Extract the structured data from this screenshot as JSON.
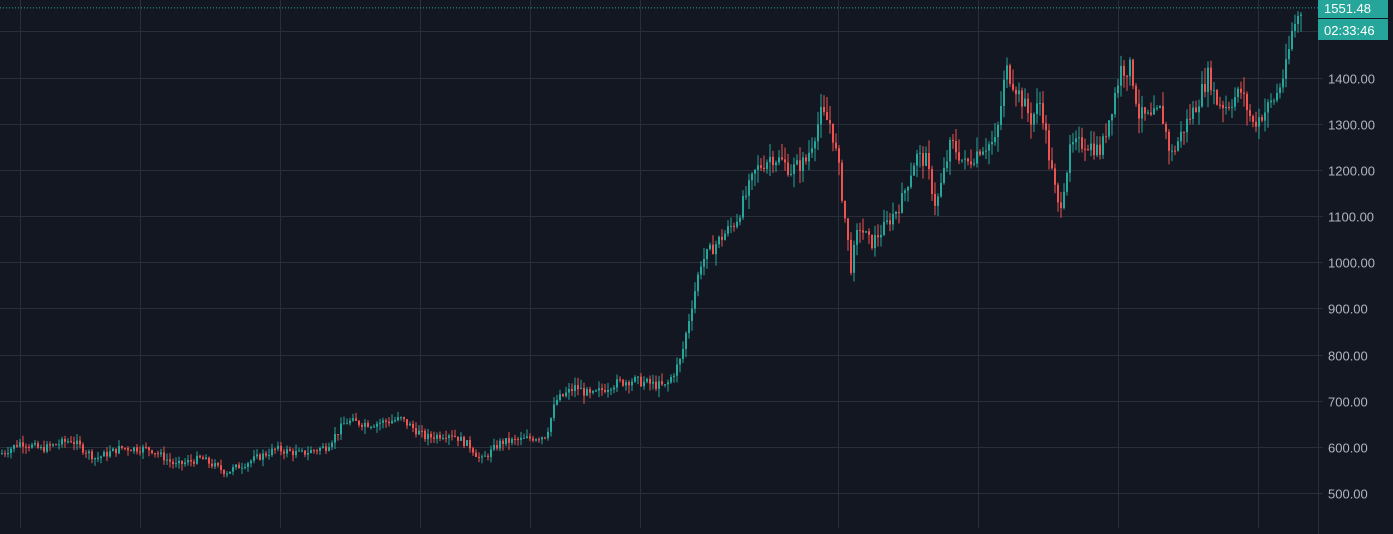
{
  "chart_data": {
    "type": "candlestick",
    "title": "",
    "xlabel": "",
    "ylabel": "",
    "ylim": [
      450,
      1565
    ],
    "grid": true,
    "y_ticks": [
      "500.00",
      "600.00",
      "700.00",
      "800.00",
      "900.00",
      "1000.00",
      "1100.00",
      "1200.00",
      "1300.00",
      "1400.00"
    ],
    "y_tick_values": [
      500,
      600,
      700,
      800,
      900,
      1000,
      1100,
      1200,
      1300,
      1400
    ],
    "last_price": "1551.48",
    "last_price_value": 1551.48,
    "countdown": "02:33:46",
    "colors": {
      "background": "#131722",
      "grid": "#2a2e39",
      "up": "#26a69a",
      "down": "#ef5350",
      "axis_text": "#b2b5be",
      "price_badge": "#26a69a"
    },
    "close_anchors": [
      [
        0,
        585
      ],
      [
        20,
        610
      ],
      [
        40,
        595
      ],
      [
        70,
        615
      ],
      [
        95,
        575
      ],
      [
        120,
        598
      ],
      [
        150,
        595
      ],
      [
        175,
        560
      ],
      [
        200,
        575
      ],
      [
        225,
        545
      ],
      [
        245,
        565
      ],
      [
        275,
        595
      ],
      [
        300,
        585
      ],
      [
        325,
        600
      ],
      [
        345,
        655
      ],
      [
        370,
        650
      ],
      [
        400,
        660
      ],
      [
        425,
        620
      ],
      [
        450,
        630
      ],
      [
        470,
        600
      ],
      [
        480,
        570
      ],
      [
        500,
        610
      ],
      [
        520,
        615
      ],
      [
        545,
        625
      ],
      [
        555,
        700
      ],
      [
        575,
        730
      ],
      [
        590,
        710
      ],
      [
        610,
        735
      ],
      [
        630,
        745
      ],
      [
        665,
        730
      ],
      [
        680,
        790
      ],
      [
        690,
        900
      ],
      [
        700,
        1000
      ],
      [
        715,
        1040
      ],
      [
        735,
        1090
      ],
      [
        755,
        1200
      ],
      [
        770,
        1230
      ],
      [
        780,
        1220
      ],
      [
        790,
        1200
      ],
      [
        805,
        1220
      ],
      [
        820,
        1320
      ],
      [
        830,
        1300
      ],
      [
        838,
        1200
      ],
      [
        850,
        990
      ],
      [
        858,
        1080
      ],
      [
        870,
        1040
      ],
      [
        885,
        1080
      ],
      [
        900,
        1130
      ],
      [
        915,
        1230
      ],
      [
        925,
        1220
      ],
      [
        935,
        1120
      ],
      [
        950,
        1260
      ],
      [
        965,
        1210
      ],
      [
        980,
        1250
      ],
      [
        995,
        1260
      ],
      [
        1005,
        1420
      ],
      [
        1015,
        1380
      ],
      [
        1030,
        1310
      ],
      [
        1040,
        1350
      ],
      [
        1048,
        1230
      ],
      [
        1058,
        1110
      ],
      [
        1070,
        1250
      ],
      [
        1085,
        1260
      ],
      [
        1100,
        1240
      ],
      [
        1110,
        1330
      ],
      [
        1120,
        1420
      ],
      [
        1130,
        1420
      ],
      [
        1138,
        1320
      ],
      [
        1150,
        1310
      ],
      [
        1160,
        1330
      ],
      [
        1170,
        1230
      ],
      [
        1185,
        1300
      ],
      [
        1195,
        1340
      ],
      [
        1208,
        1410
      ],
      [
        1215,
        1350
      ],
      [
        1225,
        1340
      ],
      [
        1240,
        1370
      ],
      [
        1252,
        1300
      ],
      [
        1265,
        1330
      ],
      [
        1275,
        1360
      ],
      [
        1285,
        1420
      ],
      [
        1292,
        1510
      ],
      [
        1301,
        1551
      ]
    ]
  }
}
